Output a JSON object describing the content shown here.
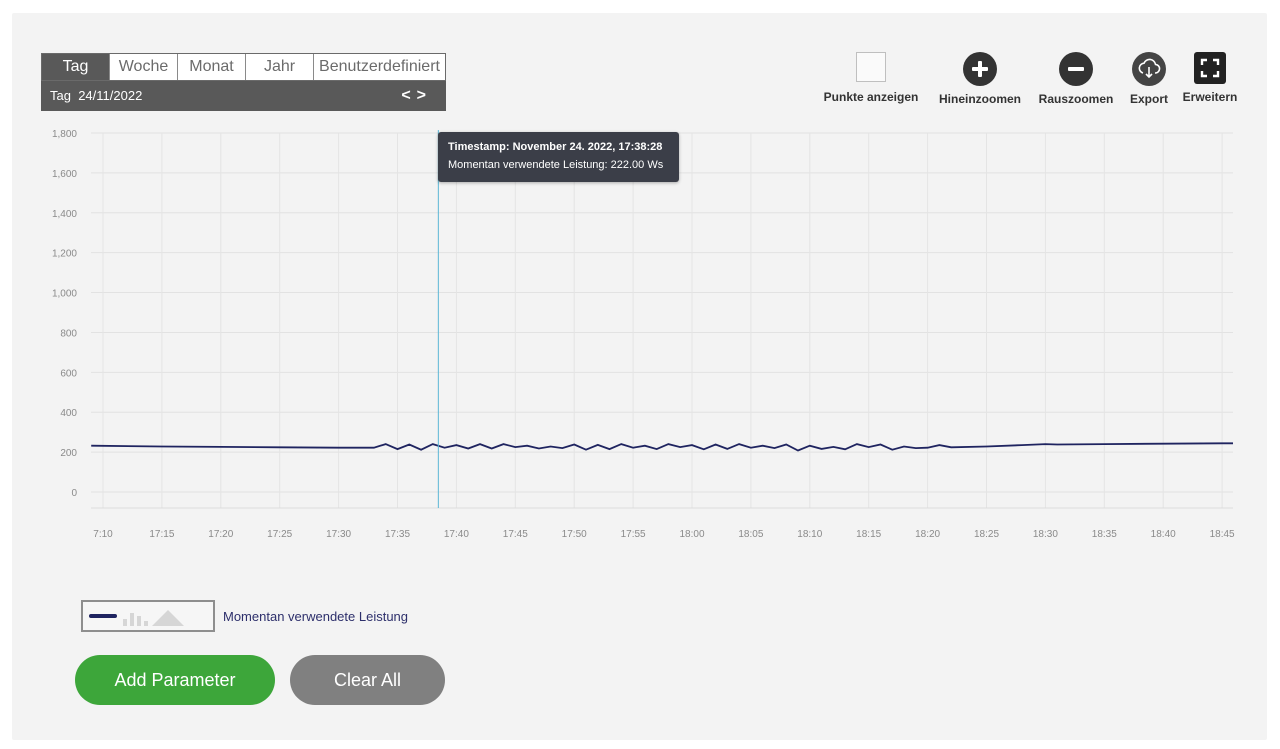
{
  "period": {
    "tabs": [
      "Tag",
      "Woche",
      "Monat",
      "Jahr",
      "Benutzerdefiniert"
    ],
    "active": "Tag",
    "current_label": "Tag",
    "current_date": "24/11/2022",
    "prev": "<",
    "next": ">"
  },
  "tools": {
    "points": "Punkte anzeigen",
    "zoom_in": "Hineinzoomen",
    "zoom_out": "Rauszoomen",
    "export": "Export",
    "expand": "Erweitern"
  },
  "tooltip": {
    "title": "Timestamp: November 24. 2022, 17:38:28",
    "value": "Momentan verwendete Leistung: 222.00 Ws"
  },
  "legend": {
    "series_name": "Momentan verwendete Leistung",
    "line_color": "#1f2460"
  },
  "buttons": {
    "add": "Add Parameter",
    "clear": "Clear All"
  },
  "colors": {
    "add_button": "#3da63a",
    "clear_button": "#808080",
    "series": "#1f2460",
    "crosshair": "#5bb6d6"
  },
  "chart_data": {
    "type": "line",
    "title": "",
    "xlabel": "",
    "ylabel": "",
    "ylim": [
      0,
      1800
    ],
    "yticks": [
      "0",
      "200",
      "400",
      "600",
      "800",
      "1,000",
      "1,200",
      "1,400",
      "1,600",
      "1,800"
    ],
    "xticks": [
      "7:10",
      "17:15",
      "17:20",
      "17:25",
      "17:30",
      "17:35",
      "17:40",
      "17:45",
      "17:50",
      "17:55",
      "18:00",
      "18:05",
      "18:10",
      "18:15",
      "18:20",
      "18:25",
      "18:30",
      "18:35",
      "18:40",
      "18:45"
    ],
    "x_start_minute": 1030,
    "x_step_minutes": 5,
    "grid": true,
    "crosshair_time": "17:38:28",
    "series": [
      {
        "name": "Momentan verwendete Leistung",
        "x": [
          "17:09",
          "17:15",
          "17:20",
          "17:25",
          "17:30",
          "17:33",
          "17:34",
          "17:35",
          "17:36",
          "17:37",
          "17:38",
          "17:39",
          "17:40",
          "17:41",
          "17:42",
          "17:43",
          "17:44",
          "17:45",
          "17:46",
          "17:47",
          "17:48",
          "17:49",
          "17:50",
          "17:51",
          "17:52",
          "17:53",
          "17:54",
          "17:55",
          "17:56",
          "17:57",
          "17:58",
          "17:59",
          "18:00",
          "18:01",
          "18:02",
          "18:03",
          "18:04",
          "18:05",
          "18:06",
          "18:07",
          "18:08",
          "18:09",
          "18:10",
          "18:11",
          "18:12",
          "18:13",
          "18:14",
          "18:15",
          "18:16",
          "18:17",
          "18:18",
          "18:19",
          "18:20",
          "18:21",
          "18:22",
          "18:25",
          "18:28",
          "18:30",
          "18:31",
          "18:35",
          "18:40",
          "18:45",
          "18:46"
        ],
        "values": [
          232,
          228,
          226,
          224,
          222,
          222,
          240,
          215,
          238,
          212,
          240,
          222,
          235,
          218,
          240,
          218,
          240,
          225,
          232,
          218,
          228,
          220,
          238,
          212,
          236,
          215,
          240,
          222,
          232,
          215,
          240,
          225,
          235,
          214,
          238,
          216,
          240,
          222,
          232,
          220,
          238,
          208,
          232,
          216,
          226,
          214,
          240,
          225,
          238,
          212,
          228,
          220,
          222,
          235,
          224,
          228,
          235,
          240,
          238,
          240,
          242,
          244,
          244
        ]
      }
    ]
  }
}
